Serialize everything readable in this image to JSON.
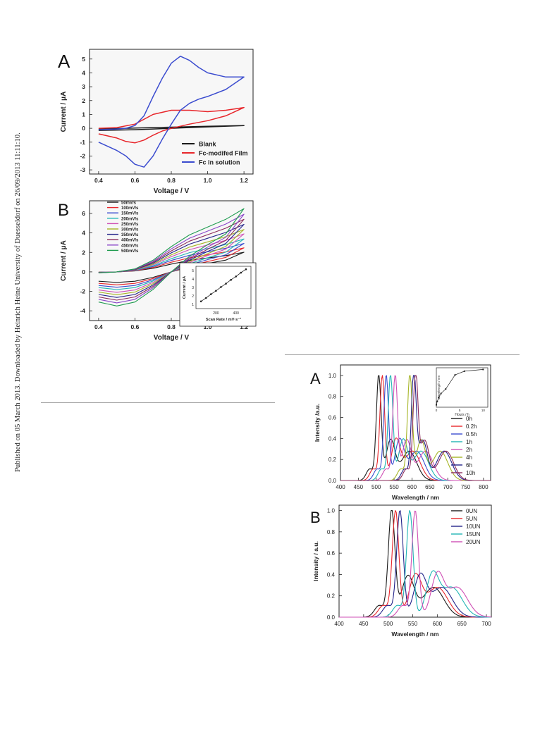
{
  "watermark": "Published on 05 March 2013. Downloaded by Heinrich Heine University of Duesseldorf on 26/09/2013 11:11:10.",
  "colors": {
    "black": "#1a1a1a",
    "red": "#e8262b",
    "blue": "#3b4ccf",
    "cyan": "#21b5b5",
    "magenta": "#cf4fb5",
    "olive": "#a6b526",
    "navy": "#24248a",
    "purple": "#8a2a5a",
    "green": "#1f9b4f",
    "orange": "#ef7a2d",
    "gray": "#8c8c8c",
    "violet": "#8a45c8"
  },
  "chart_data": [
    {
      "panel": "A",
      "type": "line",
      "xlabel": "Voltage / V",
      "ylabel": "Current / μA",
      "xlim": [
        0.35,
        1.25
      ],
      "ylim": [
        -3.3,
        5.7
      ],
      "xticks": [
        "0.4",
        "0.6",
        "0.8",
        "1.0",
        "1.2"
      ],
      "yticks": [
        "-3",
        "-2",
        "-1",
        "0",
        "1",
        "2",
        "3",
        "4",
        "5"
      ],
      "legend": "bottom-right",
      "series": [
        {
          "name": "Blank",
          "color": "black",
          "x": [
            0.4,
            0.6,
            0.8,
            1.0,
            1.2,
            1.0,
            0.8,
            0.6,
            0.4
          ],
          "y": [
            -0.05,
            0.02,
            0.08,
            0.14,
            0.2,
            0.1,
            0.0,
            -0.1,
            -0.15
          ]
        },
        {
          "name": "Fc-modifed Film",
          "color": "red",
          "x": [
            0.4,
            0.5,
            0.6,
            0.7,
            0.8,
            0.9,
            1.0,
            1.1,
            1.2,
            1.1,
            1.0,
            0.9,
            0.8,
            0.75,
            0.7,
            0.65,
            0.6,
            0.55,
            0.5,
            0.4
          ],
          "y": [
            0.0,
            0.05,
            0.3,
            1.0,
            1.3,
            1.3,
            1.2,
            1.3,
            1.5,
            0.9,
            0.55,
            0.3,
            0.0,
            -0.2,
            -0.5,
            -0.85,
            -1.05,
            -0.95,
            -0.7,
            -0.4
          ]
        },
        {
          "name": "Fc in solution",
          "color": "blue",
          "x": [
            0.4,
            0.5,
            0.55,
            0.6,
            0.65,
            0.7,
            0.75,
            0.8,
            0.85,
            0.9,
            0.95,
            1.0,
            1.1,
            1.2,
            1.1,
            1.0,
            0.95,
            0.9,
            0.85,
            0.8,
            0.75,
            0.7,
            0.65,
            0.6,
            0.55,
            0.5,
            0.45,
            0.4
          ],
          "y": [
            -0.1,
            -0.05,
            0.0,
            0.2,
            0.9,
            2.3,
            3.6,
            4.7,
            5.2,
            4.9,
            4.4,
            4.0,
            3.7,
            3.7,
            2.8,
            2.3,
            2.1,
            1.8,
            1.3,
            0.3,
            -0.8,
            -2.0,
            -2.8,
            -2.6,
            -2.0,
            -1.6,
            -1.3,
            -1.0
          ]
        }
      ]
    },
    {
      "panel": "B",
      "type": "line",
      "xlabel": "Voltage / V",
      "ylabel": "Current / μA",
      "xlim": [
        0.35,
        1.25
      ],
      "ylim": [
        -5.0,
        7.3
      ],
      "xticks": [
        "0.4",
        "0.6",
        "0.8",
        "1.0",
        "1.2"
      ],
      "yticks": [
        "-4",
        "-2",
        "0",
        "2",
        "4",
        "6"
      ],
      "legend": "top-left",
      "series": [
        {
          "name": "50mV/s",
          "color": "black",
          "scale": 0.31
        },
        {
          "name": "100mV/s",
          "color": "red",
          "scale": 0.38
        },
        {
          "name": "150mV/s",
          "color": "blue",
          "scale": 0.45
        },
        {
          "name": "200mV/s",
          "color": "cyan",
          "scale": 0.52
        },
        {
          "name": "250mV/s",
          "color": "magenta",
          "scale": 0.6
        },
        {
          "name": "300mV/s",
          "color": "olive",
          "scale": 0.67
        },
        {
          "name": "350mV/s",
          "color": "navy",
          "scale": 0.75
        },
        {
          "name": "400mV/s",
          "color": "purple",
          "scale": 0.83
        },
        {
          "name": "450mV/s",
          "color": "violet",
          "scale": 0.91
        },
        {
          "name": "500mV/s",
          "color": "green",
          "scale": 1.0
        }
      ],
      "base_cycle": {
        "x": [
          0.4,
          0.5,
          0.6,
          0.7,
          0.8,
          0.9,
          1.0,
          1.1,
          1.2,
          1.1,
          1.0,
          0.9,
          0.8,
          0.7,
          0.6,
          0.5,
          0.45,
          0.4
        ],
        "y": [
          -0.1,
          0.0,
          0.3,
          1.2,
          2.6,
          3.8,
          4.6,
          5.4,
          6.5,
          3.9,
          2.8,
          1.6,
          0.0,
          -1.8,
          -3.1,
          -3.5,
          -3.3,
          -3.1
        ]
      },
      "inset": {
        "xlabel": "Scan Rate / mV·s⁻¹",
        "ylabel": "Current / μA",
        "xticks": [
          "200",
          "400"
        ],
        "yticks": [
          "1",
          "2",
          "3",
          "4",
          "5"
        ],
        "xlim": [
          0,
          550
        ],
        "ylim": [
          0.5,
          5.5
        ],
        "x": [
          50,
          100,
          150,
          200,
          250,
          300,
          350,
          400,
          450,
          500
        ],
        "y": [
          1.35,
          1.75,
          2.2,
          2.6,
          3.05,
          3.45,
          3.9,
          4.3,
          4.75,
          5.15
        ]
      }
    },
    {
      "panel": "A",
      "type": "line",
      "xlabel": "Wavelength / nm",
      "ylabel": "Intensity /a.u.",
      "xlim": [
        400,
        820
      ],
      "ylim": [
        0,
        1.1
      ],
      "xticks": [
        "400",
        "450",
        "500",
        "550",
        "600",
        "650",
        "700",
        "750",
        "800"
      ],
      "yticks": [
        "0.0",
        "0.2",
        "0.4",
        "0.6",
        "0.8",
        "1.0"
      ],
      "legend": "right",
      "series": [
        {
          "name": "0h",
          "color": "black",
          "peak": 507,
          "shoulder": 540
        },
        {
          "name": "0.2h",
          "color": "red",
          "peak": 517,
          "shoulder": 555
        },
        {
          "name": "0.5h",
          "color": "blue",
          "peak": 528,
          "shoulder": 565
        },
        {
          "name": "1h",
          "color": "cyan",
          "peak": 540,
          "shoulder": 575
        },
        {
          "name": "2h",
          "color": "magenta",
          "peak": 553,
          "shoulder": 585
        },
        {
          "name": "4h",
          "color": "olive",
          "peak": 594,
          "shoulder": 625
        },
        {
          "name": "6h",
          "color": "navy",
          "peak": 605,
          "shoulder": 630
        },
        {
          "name": "10h",
          "color": "purple",
          "peak": 610,
          "shoulder": 635
        }
      ],
      "inset": {
        "xlabel": "Hours / h",
        "ylabel": "Wavelength / nm",
        "xticks": [
          "0",
          "5",
          "10"
        ],
        "xlim": [
          0,
          11
        ],
        "ylim": [
          500,
          615
        ],
        "x": [
          0,
          0.2,
          0.5,
          1,
          2,
          4,
          6,
          10
        ],
        "y": [
          507,
          517,
          528,
          540,
          553,
          594,
          605,
          610
        ]
      }
    },
    {
      "panel": "B",
      "type": "line",
      "xlabel": "Wavelength / nm",
      "ylabel": "Intensity / a.u.",
      "xlim": [
        400,
        710
      ],
      "ylim": [
        0,
        1.05
      ],
      "xticks": [
        "400",
        "450",
        "500",
        "550",
        "600",
        "650",
        "700"
      ],
      "yticks": [
        "0.0",
        "0.2",
        "0.4",
        "0.6",
        "0.8",
        "1.0"
      ],
      "legend": "top-right",
      "series": [
        {
          "name": "0UN",
          "color": "black",
          "peak": 507,
          "shoulder": 540
        },
        {
          "name": "5UN",
          "color": "red",
          "peak": 515,
          "shoulder": 555
        },
        {
          "name": "10UN",
          "color": "navy",
          "peak": 524,
          "shoulder": 565
        },
        {
          "name": "15UN",
          "color": "cyan",
          "peak": 544,
          "shoulder": 590
        },
        {
          "name": "20UN",
          "color": "magenta",
          "peak": 555,
          "shoulder": 600
        }
      ]
    }
  ]
}
